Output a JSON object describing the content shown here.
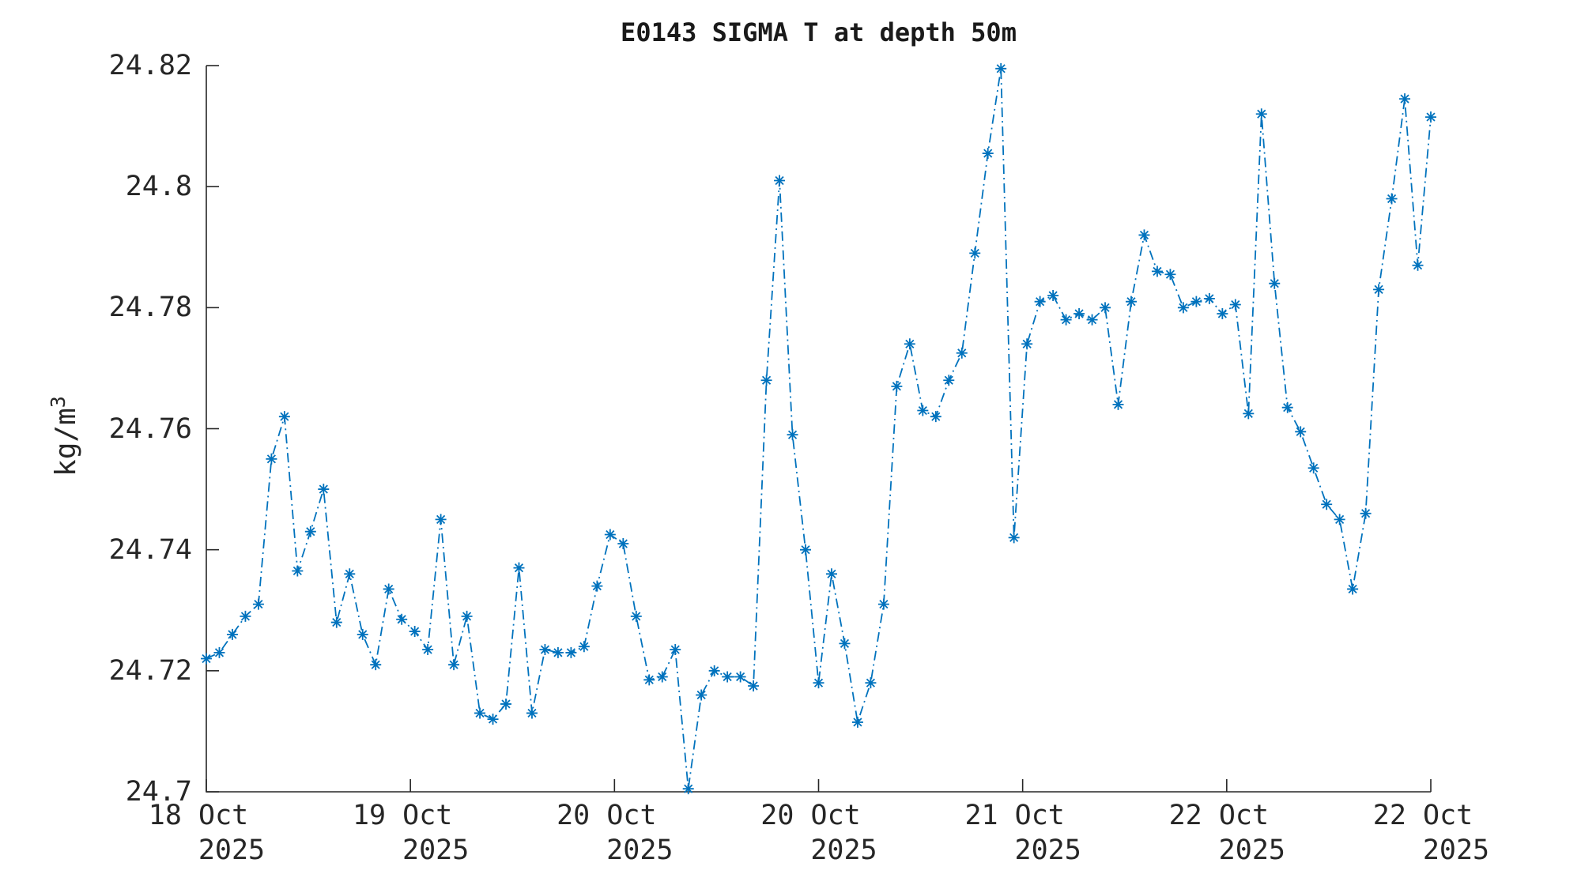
{
  "chart_data": {
    "type": "line",
    "title": "E0143 SIGMA T at depth 50m",
    "ylabel": "kg/m³",
    "ylabel_base": "kg/m",
    "ylabel_exponent": "3",
    "xlabel": "",
    "line_color": "#0072BD",
    "axis_color": "#262626",
    "line_style": "dash-dot",
    "marker": "asterisk",
    "grid": false,
    "legend_position": "none",
    "ylim": [
      24.7,
      24.82
    ],
    "y_ticks": [
      24.7,
      24.72,
      24.74,
      24.76,
      24.78,
      24.8,
      24.82
    ],
    "y_tick_labels": [
      "24.7",
      "24.72",
      "24.74",
      "24.76",
      "24.78",
      "24.8",
      "24.82"
    ],
    "x_tick_labels": [
      {
        "line1": "18 Oct",
        "line2": "2025"
      },
      {
        "line1": "19 Oct",
        "line2": "2025"
      },
      {
        "line1": "20 Oct",
        "line2": "2025"
      },
      {
        "line1": "20 Oct",
        "line2": "2025"
      },
      {
        "line1": "21 Oct",
        "line2": "2025"
      },
      {
        "line1": "22 Oct",
        "line2": "2025"
      },
      {
        "line1": "22 Oct",
        "line2": "2025"
      }
    ],
    "values": [
      24.722,
      24.723,
      24.726,
      24.729,
      24.731,
      24.755,
      24.762,
      24.7365,
      24.743,
      24.75,
      24.728,
      24.736,
      24.726,
      24.721,
      24.7335,
      24.7285,
      24.7265,
      24.7235,
      24.745,
      24.721,
      24.729,
      24.713,
      24.712,
      24.7145,
      24.737,
      24.713,
      24.7235,
      24.723,
      24.723,
      24.724,
      24.734,
      24.7425,
      24.741,
      24.729,
      24.7185,
      24.719,
      24.7235,
      24.7005,
      24.716,
      24.72,
      24.719,
      24.719,
      24.7175,
      24.768,
      24.801,
      24.759,
      24.74,
      24.718,
      24.736,
      24.7245,
      24.7115,
      24.718,
      24.731,
      24.767,
      24.774,
      24.763,
      24.762,
      24.768,
      24.7725,
      24.789,
      24.8055,
      24.8195,
      24.742,
      24.774,
      24.781,
      24.782,
      24.778,
      24.779,
      24.778,
      24.78,
      24.764,
      24.781,
      24.792,
      24.786,
      24.7855,
      24.78,
      24.781,
      24.7815,
      24.779,
      24.7805,
      24.7625,
      24.812,
      24.784,
      24.7635,
      24.7595,
      24.7535,
      24.7475,
      24.745,
      24.7335,
      24.746,
      24.783,
      24.798,
      24.8145,
      24.787,
      24.8115
    ]
  }
}
